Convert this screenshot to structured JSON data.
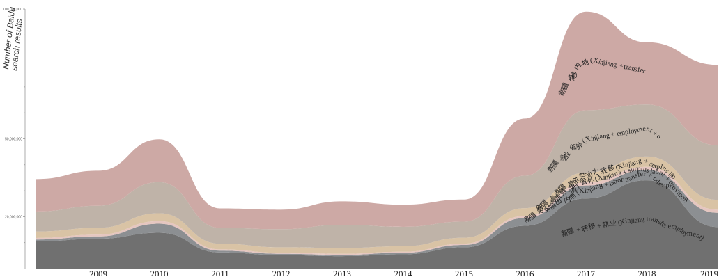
{
  "chart_data": {
    "type": "area",
    "subtype": "stacked-streamgraph",
    "ylabel_lines": [
      "Number of Baidu",
      "search results"
    ],
    "ylim": [
      0,
      100000000
    ],
    "yticks": [
      {
        "value": 100000000,
        "label": "100,000,000"
      },
      {
        "value": 50000000,
        "label": "50,000,000"
      },
      {
        "value": 20000000,
        "label": "20,000,000"
      }
    ],
    "yminor_ticks": [
      90000000,
      80000000,
      70000000,
      60000000,
      40000000,
      30000000,
      10000000
    ],
    "x": [
      2008,
      2009,
      2010,
      2011,
      2012,
      2013,
      2014,
      2015,
      2016,
      2017,
      2018,
      2019
    ],
    "xtick_labels": [
      "2009",
      "2010",
      "2011",
      "2012",
      "2013",
      "2014",
      "2015",
      "2016",
      "2017",
      "2018",
      "2019"
    ],
    "series": [
      {
        "name": "新疆 + 转移 + 就业 (Xinjiang transfer employment)",
        "color": "#707070",
        "values": [
          10500000,
          11500000,
          13800000,
          6200000,
          5200000,
          4800000,
          5500000,
          8200000,
          16500000,
          27000000,
          34000000,
          16000000
        ]
      },
      {
        "name": "新疆 劳务输出 内地 (Xinjiang + labor transfer + other province)",
        "color": "#8c8f92",
        "values": [
          700000,
          900000,
          3500000,
          700000,
          500000,
          500000,
          600000,
          900000,
          3000000,
          5000000,
          4000000,
          5500000
        ]
      },
      {
        "name": "新疆 富余劳动力 省外 (Xinjiang + surplus labor + outside of (Xinjiang))",
        "color": "#e5c6c0",
        "values": [
          600000,
          700000,
          1000000,
          500000,
          400000,
          400000,
          400000,
          500000,
          800000,
          1200000,
          1200000,
          1200000
        ]
      },
      {
        "name": "新疆 富余劳动力 转移 (Xinjiang + surplus labor + transfer)",
        "color": "#d9c3a5",
        "values": [
          2500000,
          2600000,
          3000000,
          2200000,
          2100000,
          2200000,
          2100000,
          2300000,
          3000000,
          3800000,
          4000000,
          3800000
        ]
      },
      {
        "name": "新疆 就业 省外 (Xinjiang + employment + outside of (Xinjiang))",
        "color": "#bfb3a8",
        "values": [
          7700000,
          8500000,
          12000000,
          6100000,
          7000000,
          9000000,
          7500000,
          6200000,
          12500000,
          24000000,
          20000000,
          21000000
        ]
      },
      {
        "name": "新疆 转移 内地 (Xinjiang + transfer + other provinces in China)",
        "color": "#cda9a5",
        "values": [
          12500000,
          13500000,
          16500000,
          7500000,
          7500000,
          9000000,
          8500000,
          8500000,
          22000000,
          38000000,
          24000000,
          31000000
        ]
      }
    ],
    "band_labels": [
      "新疆 转移 内地 (Xinjiang + transfer + other provinces in China)",
      "新疆 就业 省外 (Xinjiang + employment + outside of (Xinjiang))",
      "新疆 富余劳动力 转移 (Xinjiang + surplus labor + transfer)",
      "新疆 富余劳动力 省外 (Xinjiang + surplus labor + outside of (Xinjiang))",
      "新疆 劳务输出 内地 (Xinjiang + labor transfer + other province)",
      "新疆 + 转移 + 就业 (Xinjiang transfer employment)"
    ],
    "grid": false,
    "legend": "none"
  }
}
